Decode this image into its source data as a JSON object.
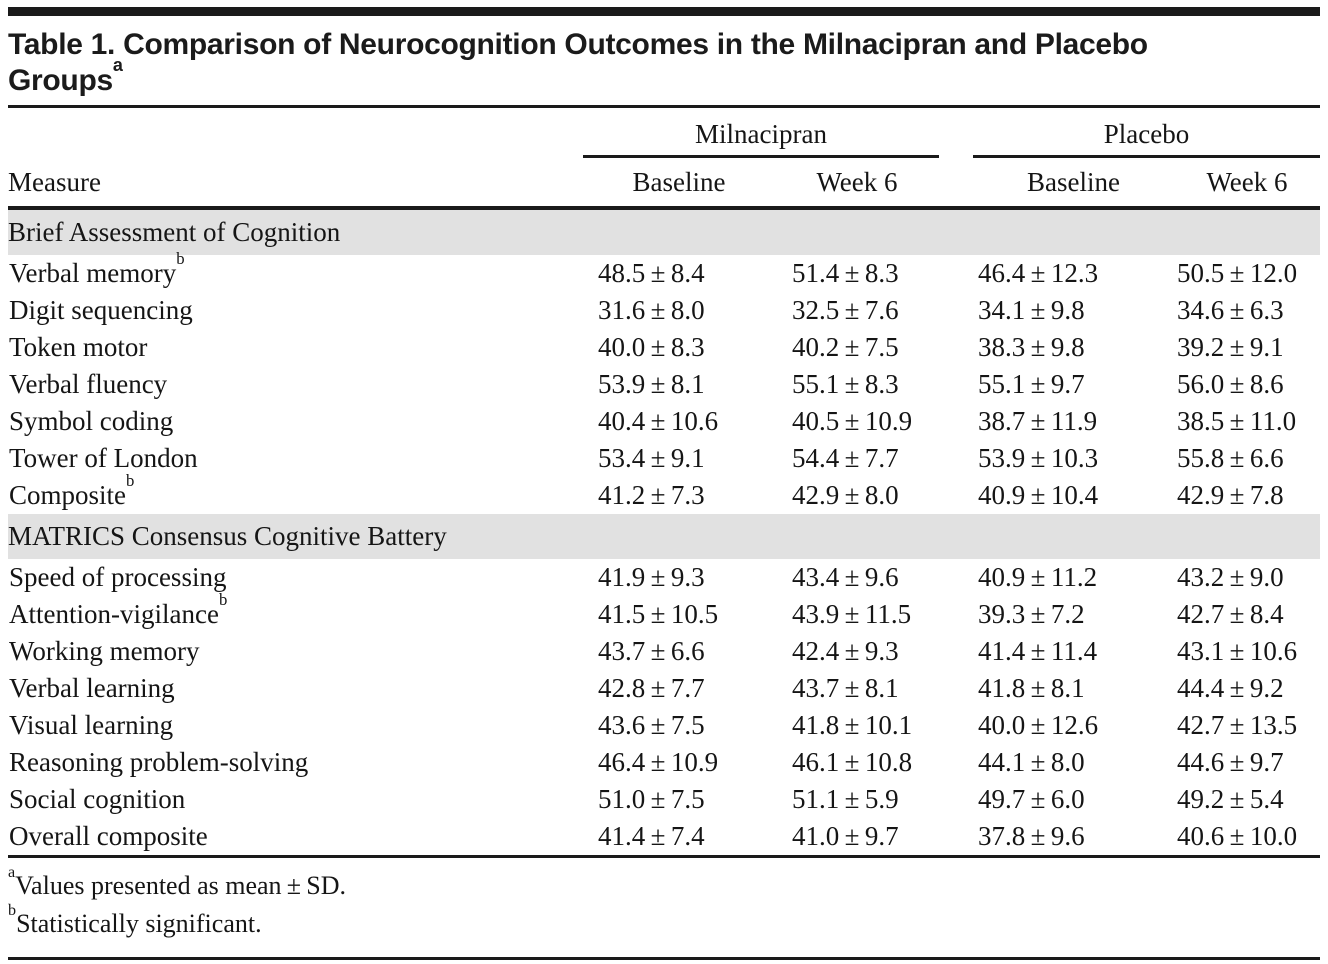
{
  "title": {
    "text": "Table 1. Comparison of Neurocognition Outcomes in the Milnacipran and Placebo Groups",
    "superscript": "a"
  },
  "table": {
    "measure_header": "Measure",
    "groups": [
      {
        "name": "Milnacipran",
        "columns": [
          "Baseline",
          "Week 6"
        ]
      },
      {
        "name": "Placebo",
        "columns": [
          "Baseline",
          "Week 6"
        ]
      }
    ],
    "sections": [
      {
        "title": "Brief Assessment of Cognition",
        "rows": [
          {
            "label": "Verbal memory",
            "sup": "b",
            "values": [
              "48.5 ± 8.4",
              "51.4 ± 8.3",
              "46.4 ± 12.3",
              "50.5 ± 12.0"
            ]
          },
          {
            "label": "Digit sequencing",
            "sup": null,
            "values": [
              "31.6 ± 8.0",
              "32.5 ± 7.6",
              "34.1 ± 9.8",
              "34.6 ± 6.3"
            ]
          },
          {
            "label": "Token motor",
            "sup": null,
            "values": [
              "40.0 ± 8.3",
              "40.2 ± 7.5",
              "38.3 ± 9.8",
              "39.2 ± 9.1"
            ]
          },
          {
            "label": "Verbal fluency",
            "sup": null,
            "values": [
              "53.9 ± 8.1",
              "55.1 ± 8.3",
              "55.1 ± 9.7",
              "56.0 ± 8.6"
            ]
          },
          {
            "label": "Symbol coding",
            "sup": null,
            "values": [
              "40.4 ± 10.6",
              "40.5 ± 10.9",
              "38.7 ± 11.9",
              "38.5 ± 11.0"
            ]
          },
          {
            "label": "Tower of London",
            "sup": null,
            "values": [
              "53.4 ± 9.1",
              "54.4 ± 7.7",
              "53.9 ± 10.3",
              "55.8 ± 6.6"
            ]
          },
          {
            "label": "Composite",
            "sup": "b",
            "values": [
              "41.2 ± 7.3",
              "42.9 ± 8.0",
              "40.9 ± 10.4",
              "42.9 ± 7.8"
            ]
          }
        ]
      },
      {
        "title": "MATRICS Consensus Cognitive Battery",
        "rows": [
          {
            "label": "Speed of processing",
            "sup": null,
            "values": [
              "41.9 ± 9.3",
              "43.4 ± 9.6",
              "40.9 ± 11.2",
              "43.2 ± 9.0"
            ]
          },
          {
            "label": "Attention-vigilance",
            "sup": "b",
            "values": [
              "41.5 ± 10.5",
              "43.9 ± 11.5",
              "39.3 ± 7.2",
              "42.7 ± 8.4"
            ]
          },
          {
            "label": "Working memory",
            "sup": null,
            "values": [
              "43.7 ± 6.6",
              "42.4 ± 9.3",
              "41.4 ± 11.4",
              "43.1 ± 10.6"
            ]
          },
          {
            "label": "Verbal learning",
            "sup": null,
            "values": [
              "42.8 ± 7.7",
              "43.7 ± 8.1",
              "41.8 ± 8.1",
              "44.4 ± 9.2"
            ]
          },
          {
            "label": "Visual learning",
            "sup": null,
            "values": [
              "43.6 ± 7.5",
              "41.8 ± 10.1",
              "40.0 ± 12.6",
              "42.7 ± 13.5"
            ]
          },
          {
            "label": "Reasoning problem-solving",
            "sup": null,
            "values": [
              "46.4 ± 10.9",
              "46.1 ± 10.8",
              "44.1 ± 8.0",
              "44.6 ± 9.7"
            ]
          },
          {
            "label": "Social cognition",
            "sup": null,
            "values": [
              "51.0 ± 7.5",
              "51.1 ± 5.9",
              "49.7 ± 6.0",
              "49.2 ± 5.4"
            ]
          },
          {
            "label": "Overall composite",
            "sup": null,
            "values": [
              "41.4 ± 7.4",
              "41.0 ± 9.7",
              "37.8 ± 9.6",
              "40.6 ± 10.0"
            ]
          }
        ]
      }
    ]
  },
  "footnotes": [
    {
      "marker": "a",
      "text": "Values presented as mean ± SD."
    },
    {
      "marker": "b",
      "text": "Statistically significant."
    }
  ],
  "colors": {
    "section_band": "#e1e1e1",
    "rule": "#1a1a1a",
    "text": "#151515"
  }
}
